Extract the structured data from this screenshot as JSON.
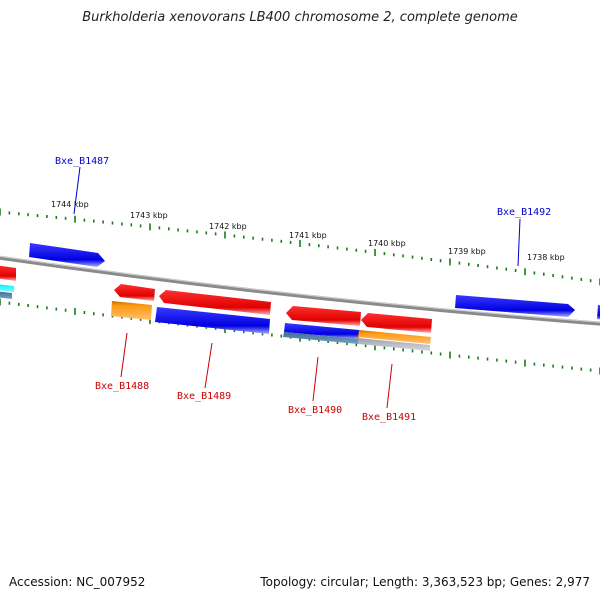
{
  "title": "Burkholderia xenovorans LB400 chromosome 2, complete genome",
  "footer": {
    "accession": "Accession: NC_007952",
    "summary": "Topology: circular; Length: 3,363,523 bp; Genes: 2,977"
  },
  "colors": {
    "backbone": "#808080",
    "tick": "#1a7a1a",
    "forward_gene": "#0000ee",
    "reverse_gene": "#ee0000",
    "orange_feature": "#ff9900",
    "cyan_feature": "#00e5ee",
    "slate_feature": "#4a7aa0",
    "grey_feature": "#b0b0b8",
    "label_forward": "#0000cc",
    "label_reverse": "#cc0000"
  },
  "scale_labels": [
    "1744 kbp",
    "1743 kbp",
    "1742 kbp",
    "1741 kbp",
    "1740 kbp",
    "1739 kbp",
    "1738 kbp"
  ],
  "gene_labels": {
    "forward": [
      "Bxe_B1487",
      "Bxe_B1492"
    ],
    "reverse": [
      "Bxe_B1488",
      "Bxe_B1489",
      "Bxe_B1490",
      "Bxe_B1491"
    ]
  }
}
